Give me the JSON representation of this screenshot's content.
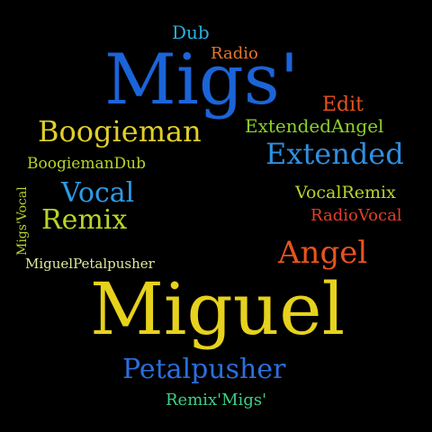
{
  "words": {
    "migs": {
      "text": "Migs'",
      "color": "#1b64d8"
    },
    "miguel": {
      "text": "Miguel",
      "color": "#e6d21c"
    },
    "boogieman": {
      "text": "Boogieman",
      "color": "#e0cf2a"
    },
    "extended": {
      "text": "Extended",
      "color": "#2f8fe0"
    },
    "petalpusher": {
      "text": "Petalpusher",
      "color": "#2a6fe0"
    },
    "angel": {
      "text": "Angel",
      "color": "#e8531e"
    },
    "vocal": {
      "text": "Vocal",
      "color": "#2d9be6"
    },
    "remix": {
      "text": "Remix",
      "color": "#b6d62a"
    },
    "extendedangel": {
      "text": "ExtendedAngel",
      "color": "#8bd22b"
    },
    "edit": {
      "text": "Edit",
      "color": "#e8531e"
    },
    "dub": {
      "text": "Dub",
      "color": "#29b0df"
    },
    "radio": {
      "text": "Radio",
      "color": "#e8772a"
    },
    "boogiemandub": {
      "text": "BoogiemanDub",
      "color": "#b6d62a"
    },
    "vocalremix": {
      "text": "VocalRemix",
      "color": "#b6d62a"
    },
    "radiovocal": {
      "text": "RadioVocal",
      "color": "#e0402a"
    },
    "miguelpetal": {
      "text": "MiguelPetalpusher",
      "color": "#e0e8a0"
    },
    "remixmigs": {
      "text": "Remix'Migs'",
      "color": "#3cd08a"
    },
    "migsvocal": {
      "text": "Migs'Vocal",
      "color": "#b6d62a"
    }
  }
}
